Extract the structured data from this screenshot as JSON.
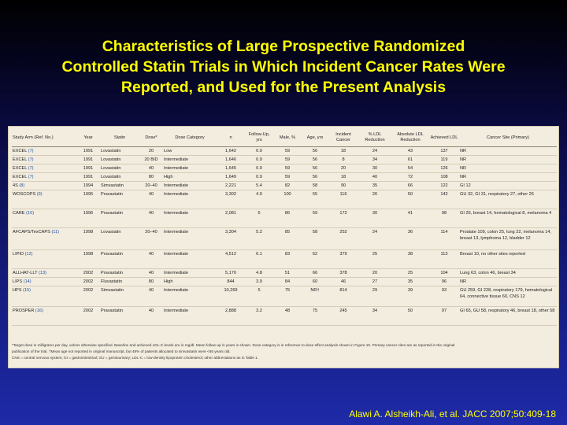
{
  "title_lines": [
    "Characteristics of Large Prospective Randomized",
    "Controlled Statin Trials in Which Incident Cancer Rates Were",
    "Reported, and Used for the Present Analysis"
  ],
  "headers": [
    "Study Arm (Ref. No.)",
    "Year",
    "Statin",
    "Dose*",
    "Dose Category",
    "n",
    "Follow-Up, yrs",
    "Male, %",
    "Age, yrs",
    "Incident Cancer",
    "% LDL Reduction",
    "Absolute LDL Reduction",
    "Achieved LDL",
    "Cancer Site (Primary)"
  ],
  "rows": [
    {
      "study": "EXCEL",
      "ref": "(7)",
      "cells": [
        "1991",
        "Lovastatin",
        "20",
        "Low",
        "1,642",
        "0.9",
        "59",
        "56",
        "18",
        "24",
        "43",
        "137",
        "NR"
      ]
    },
    {
      "study": "EXCEL",
      "ref": "(7)",
      "cells": [
        "1991",
        "Lovastatin",
        "20 BID",
        "Intermediate",
        "1,646",
        "0.9",
        "59",
        "56",
        "8",
        "34",
        "61",
        "119",
        "NR"
      ]
    },
    {
      "study": "EXCEL",
      "ref": "(7)",
      "cells": [
        "1991",
        "Lovastatin",
        "40",
        "Intermediate",
        "1,645",
        "0.9",
        "59",
        "56",
        "20",
        "30",
        "54",
        "126",
        "NR"
      ]
    },
    {
      "study": "EXCEL",
      "ref": "(7)",
      "cells": [
        "1991",
        "Lovastatin",
        "80",
        "High",
        "1,649",
        "0.9",
        "59",
        "56",
        "18",
        "40",
        "72",
        "108",
        "NR"
      ]
    },
    {
      "study": "4S",
      "ref": "(8)",
      "cells": [
        "1994",
        "Simvastatin",
        "20–40",
        "Intermediate",
        "2,221",
        "5.4",
        "82",
        "58",
        "90",
        "35",
        "66",
        "122",
        "GI 12"
      ]
    },
    {
      "study": "WOSCOPS",
      "ref": "(9)",
      "cells": [
        "1995",
        "Pravastatin",
        "40",
        "Intermediate",
        "3,302",
        "4.9",
        "100",
        "55",
        "116",
        "26",
        "50",
        "142",
        "GU 32, GI 31, respiratory 27, other 26"
      ]
    },
    {
      "study": "CARE",
      "ref": "(10)",
      "cells": [
        "1996",
        "Pravastatin",
        "40",
        "Intermediate",
        "2,081",
        "5",
        "86",
        "59",
        "172",
        "30",
        "41",
        "98",
        "GI 26, breast 14, hematological 8, melanoma 4"
      ]
    },
    {
      "study": "AFCAPS/TexCAPS",
      "ref": "(11)",
      "cells": [
        "1998",
        "Lovastatin",
        "20–40",
        "Intermediate",
        "3,304",
        "5.2",
        "85",
        "58",
        "252",
        "24",
        "36",
        "114",
        "Prostate 109, colon 25, lung 22, melanoma 14, breast 13, lymphoma 12, bladder 12"
      ]
    },
    {
      "study": "LIPID",
      "ref": "(12)",
      "cells": [
        "1998",
        "Pravastatin",
        "40",
        "Intermediate",
        "4,512",
        "6.1",
        "83",
        "62",
        "379",
        "25",
        "38",
        "113",
        "Breast 10, no other sites reported"
      ]
    },
    {
      "study": "ALLHAT-LLT",
      "ref": "(13)",
      "cells": [
        "2002",
        "Pravastatin",
        "40",
        "Intermediate",
        "5,170",
        "4.8",
        "51",
        "66",
        "378",
        "20",
        "25",
        "104",
        "Lung 63, colon 46, breast 34"
      ]
    },
    {
      "study": "LIPS",
      "ref": "(14)",
      "cells": [
        "2002",
        "Fluvastatin",
        "80",
        "High",
        "844",
        "3.9",
        "84",
        "60",
        "46",
        "27",
        "35",
        "96",
        "NR"
      ]
    },
    {
      "study": "HPS",
      "ref": "(15)",
      "cells": [
        "2002",
        "Simvastatin",
        "40",
        "Intermediate",
        "10,269",
        "5",
        "75",
        "NR†",
        "814",
        "29",
        "39",
        "93",
        "GU 259, GI 228, respiratory 179, hematological 64, connective tissue 60, CNS 12"
      ]
    },
    {
      "study": "PROSPER",
      "ref": "(16)",
      "cells": [
        "2002",
        "Pravastatin",
        "40",
        "Intermediate",
        "2,888",
        "3.2",
        "48",
        "75",
        "245",
        "34",
        "50",
        "97",
        "GI 65, GU 58, respiratory 46, breast 18, other 58"
      ]
    }
  ],
  "footnotes": [
    "*Target dose in milligrams per day, unless otherwise specified. Baseline and achieved LDL-C levels are in mg/dl. Mean follow-up in years is shown. Dose category is in reference to dose effect analysis shown in Figure 10. Primary cancer sites are as reported in the original",
    "publication of the trial. †Mean age not reported in original manuscript, but 48% of patients allocated to simvastatin were <65 years old.",
    "CNS = central nervous system; GI = gastrointestinal; GU = genitourinary; LDL-C = low-density lipoprotein cholesterol; other abbreviations as in Table 1."
  ],
  "citation": "Alawi A. Alsheikh-Ali, et al. JACC 2007;50:409-18"
}
